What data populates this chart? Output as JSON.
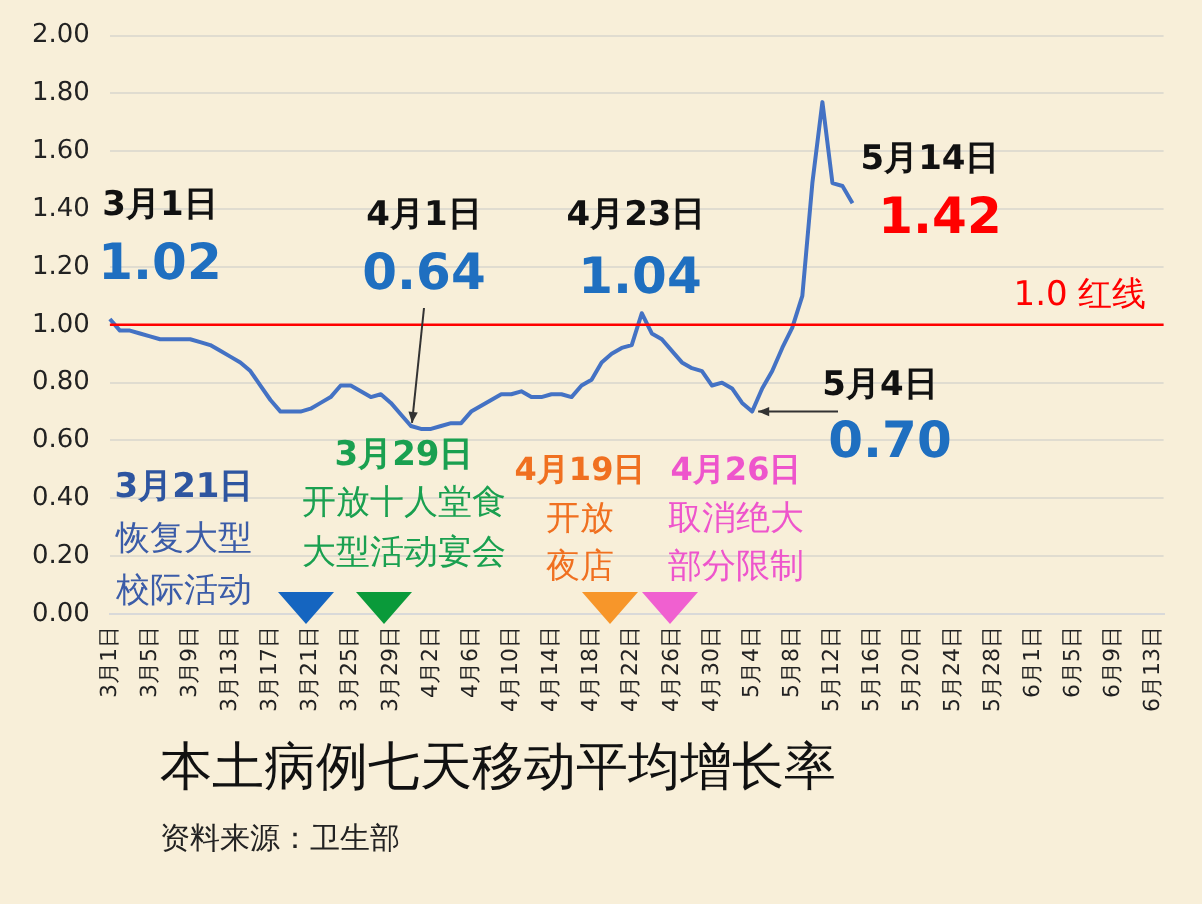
{
  "chart_data": {
    "type": "line",
    "title": "本土病例七天移动平均增长率",
    "categories": [
      "3月1日",
      null,
      null,
      null,
      "3月5日",
      null,
      null,
      null,
      "3月9日",
      null,
      null,
      null,
      "3月13日",
      null,
      null,
      null,
      "3月17日",
      null,
      null,
      null,
      "3月21日",
      null,
      null,
      null,
      "3月25日",
      null,
      null,
      null,
      "3月29日",
      null,
      null,
      null,
      "4月2日",
      null,
      null,
      null,
      "4月6日",
      null,
      null,
      null,
      "4月10日",
      null,
      null,
      null,
      "4月14日",
      null,
      null,
      null,
      "4月18日",
      null,
      null,
      null,
      "4月22日",
      null,
      null,
      null,
      "4月26日",
      null,
      null,
      null,
      "4月30日",
      null,
      null,
      null,
      "5月4日",
      null,
      null,
      null,
      "5月8日",
      null,
      null,
      null,
      "5月12日",
      null,
      null,
      null,
      "5月16日",
      null,
      null,
      null,
      "5月20日",
      null,
      null,
      null,
      "5月24日",
      null,
      null,
      null,
      "5月28日",
      null,
      null,
      null,
      "6月1日",
      null,
      null,
      null,
      "6月5日",
      null,
      null,
      null,
      "6月9日",
      null,
      null,
      null,
      "6月13日",
      null
    ],
    "series": [
      {
        "color": "#4472c4",
        "values": [
          1.02,
          0.98,
          0.98,
          0.97,
          0.96,
          0.95,
          0.95,
          0.95,
          0.95,
          0.94,
          0.93,
          0.91,
          0.89,
          0.87,
          0.84,
          0.79,
          0.74,
          0.7,
          0.7,
          0.7,
          0.71,
          0.73,
          0.75,
          0.79,
          0.79,
          0.77,
          0.75,
          0.76,
          0.73,
          0.69,
          0.65,
          0.64,
          0.64,
          0.65,
          0.66,
          0.66,
          0.7,
          0.72,
          0.74,
          0.76,
          0.76,
          0.77,
          0.75,
          0.75,
          0.76,
          0.76,
          0.75,
          0.79,
          0.81,
          0.87,
          0.9,
          0.92,
          0.93,
          1.04,
          0.97,
          0.95,
          0.91,
          0.87,
          0.85,
          0.84,
          0.79,
          0.8,
          0.78,
          0.73,
          0.7,
          0.78,
          0.84,
          0.92,
          0.99,
          1.1,
          1.49,
          1.77,
          1.49,
          1.48,
          1.42,
          null,
          null,
          null,
          null,
          null,
          null,
          null,
          null,
          null,
          null,
          null,
          null,
          null,
          null,
          null,
          null,
          null,
          null,
          null,
          null,
          null,
          null,
          null,
          null,
          null,
          null,
          null,
          null,
          null,
          null,
          null
        ]
      }
    ],
    "ylim": [
      0,
      2
    ],
    "yticks": [
      {
        "value": 0,
        "label": "0.00"
      },
      {
        "value": 0.2,
        "label": "0.20"
      },
      {
        "value": 0.4,
        "label": "0.40"
      },
      {
        "value": 0.6,
        "label": "0.60"
      },
      {
        "value": 0.8,
        "label": "0.80"
      },
      {
        "value": 1,
        "label": "1.00"
      },
      {
        "value": 1.2,
        "label": "1.20"
      },
      {
        "value": 1.4,
        "label": "1.40"
      },
      {
        "value": 1.6,
        "label": "1.60"
      },
      {
        "value": 1.8,
        "label": "1.80"
      },
      {
        "value": 2,
        "label": "2.00"
      }
    ],
    "grid": "y",
    "legend": false,
    "marker": "none",
    "line_style": "solid",
    "ref_lines": [
      {
        "axis": "y",
        "value": 1,
        "label": "1.0 红线",
        "color": "#ff0000"
      }
    ],
    "annotations": [
      "3月1日",
      "1.02",
      "4月1日",
      {
        "text": "0.64",
        "y": 0.64
      },
      "4月23日",
      "1.04",
      "5月14日",
      "1.42",
      {
        "text": "5月4日",
        "x": "5月4日",
        "y": 0.7
      },
      "0.70",
      "3月21日",
      "恢复大型",
      "校际活动",
      "3月29日",
      "开放十人堂食",
      "大型活动宴会",
      "4月19日",
      "开放",
      "夜店",
      "4月26日",
      "取消绝大",
      "部分限制",
      "资料来源：卫生部"
    ]
  }
}
